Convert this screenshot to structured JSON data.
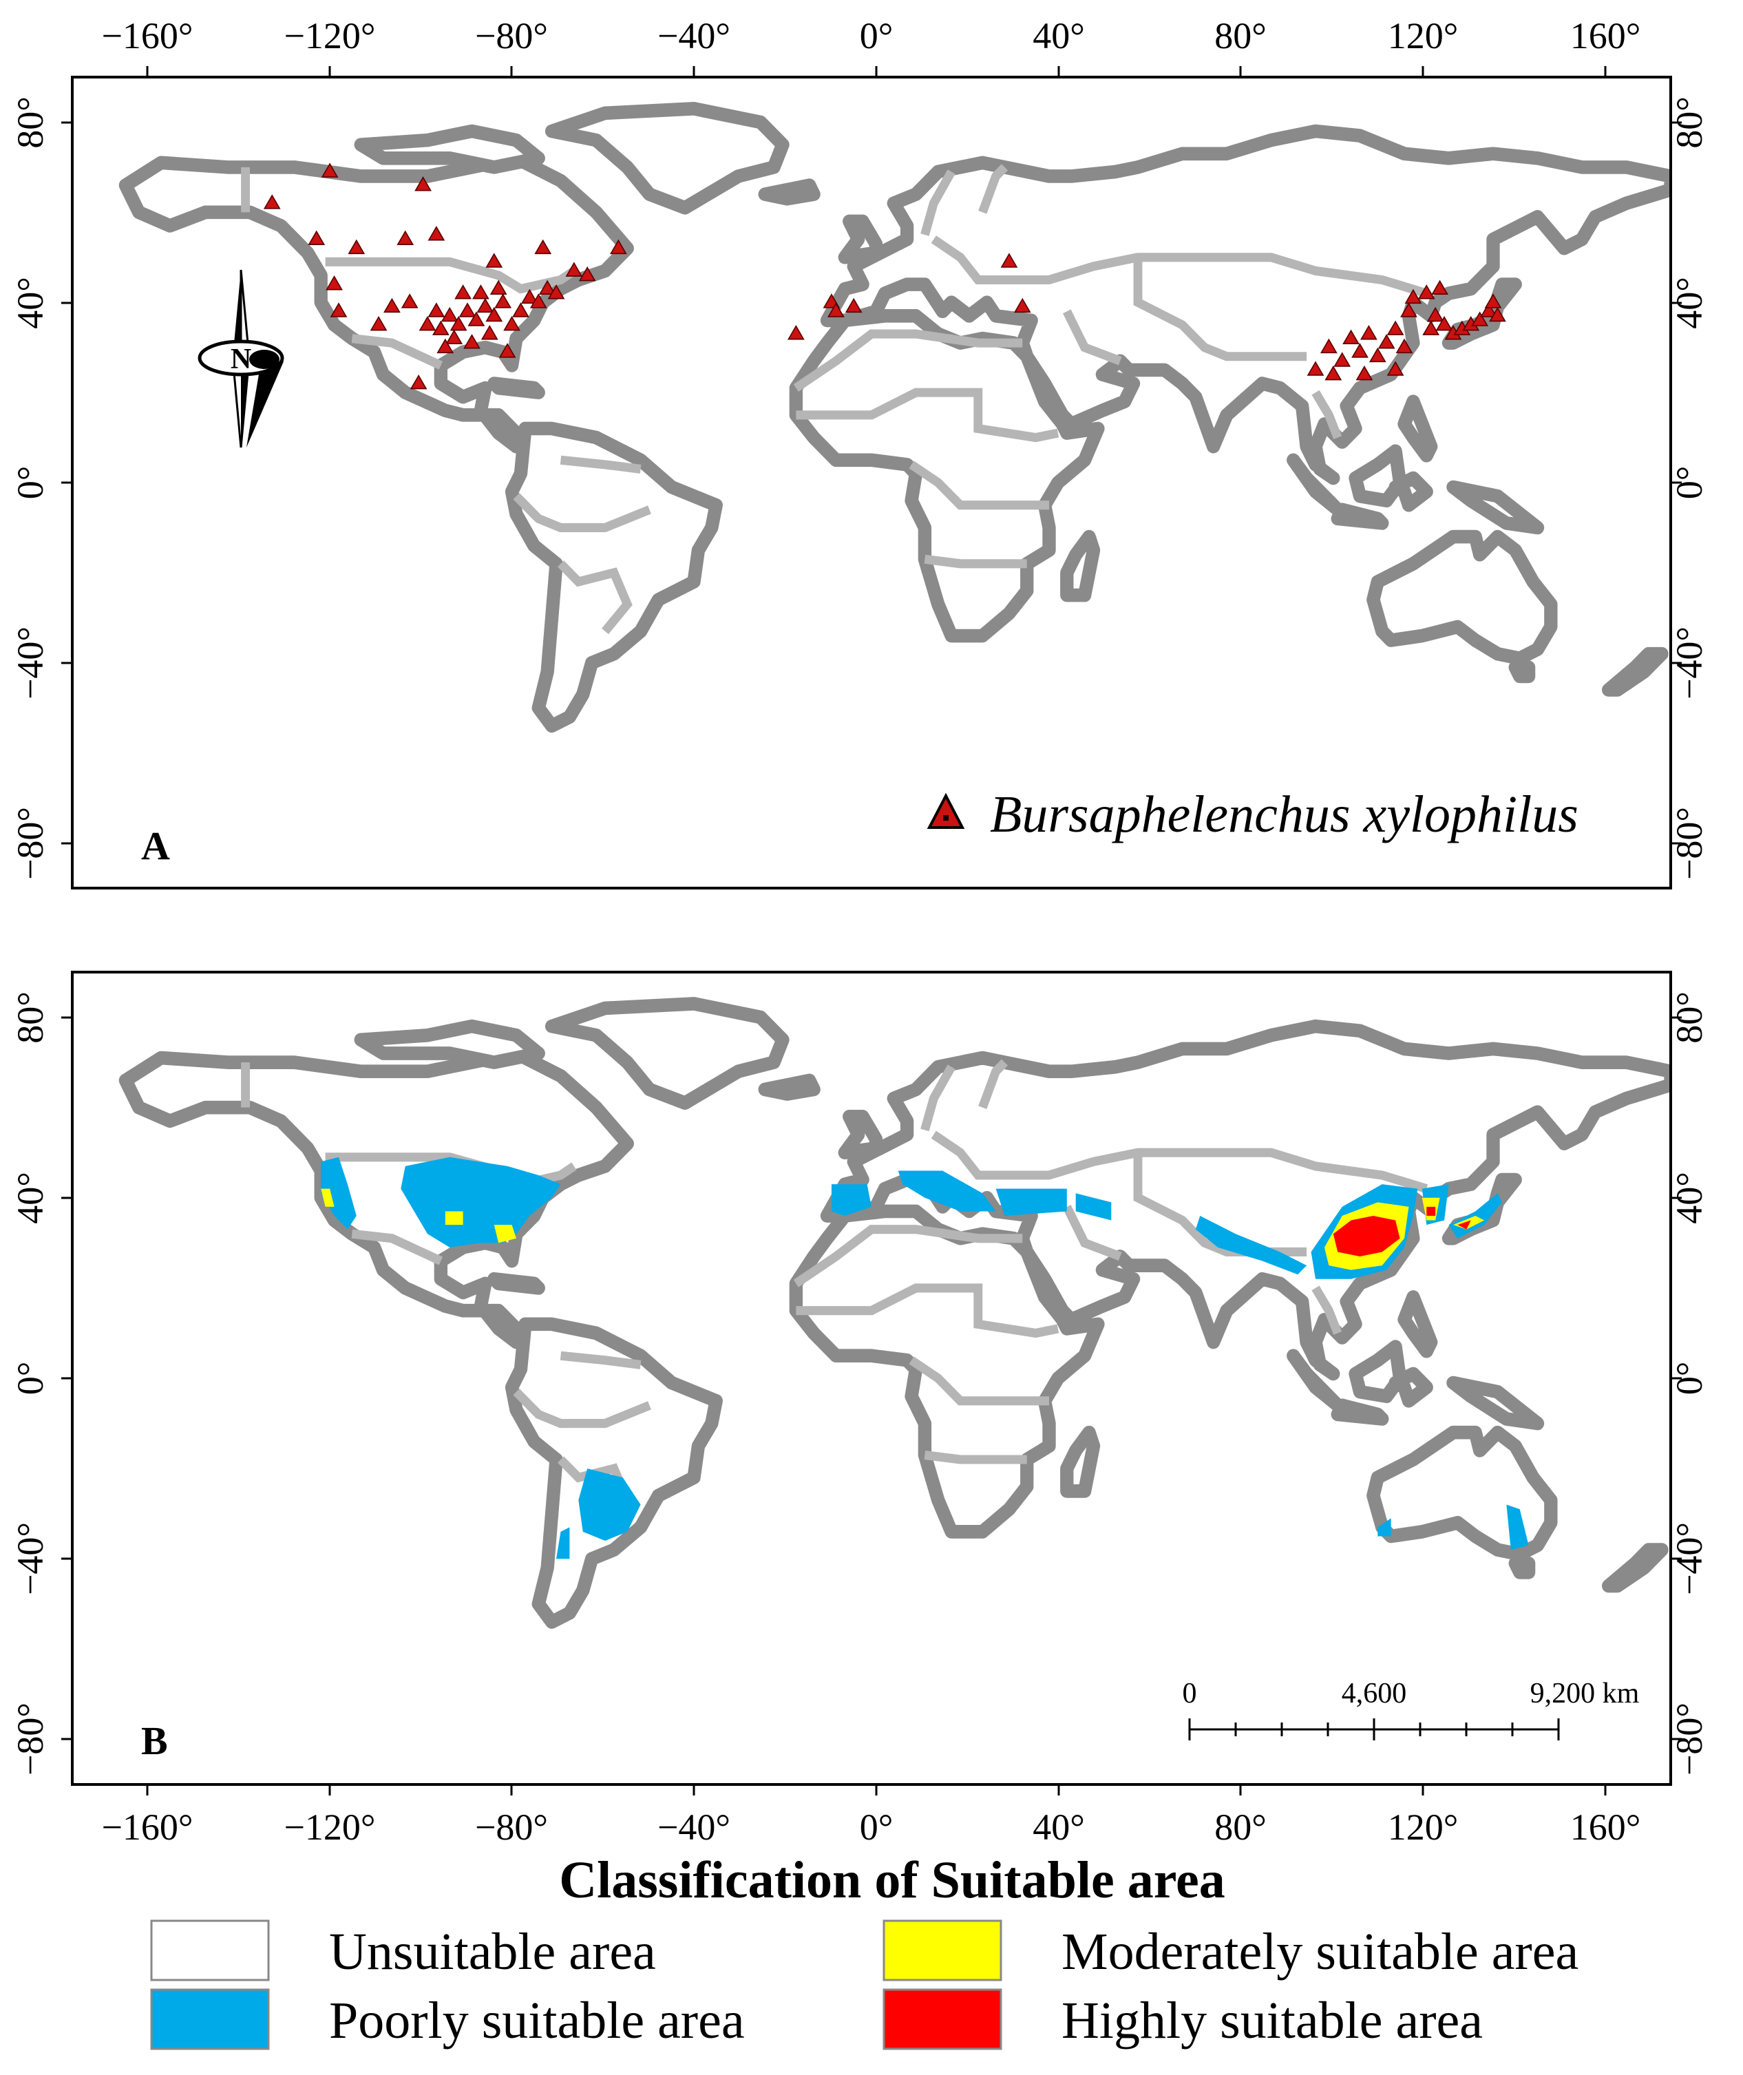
{
  "map": {
    "lon_tick_labels": [
      "−160°",
      "−120°",
      "−80°",
      "−40°",
      "0°",
      "40°",
      "80°",
      "120°",
      "160°"
    ],
    "lat_tick_labels": [
      "80°",
      "40°",
      "0°",
      "−40°",
      "−80°"
    ],
    "panel_a": {
      "letter": "A",
      "legend_label": "Bursaphelenchus xylophilus",
      "north_arrow_letter": "N"
    },
    "panel_b": {
      "letter": "B",
      "scale_bar": {
        "labels": [
          "0",
          "4,600",
          "9,200 km"
        ]
      }
    }
  },
  "legend": {
    "title": "Classification of Suitable area",
    "items": [
      {
        "label": "Unsuitable area",
        "color": "#ffffff"
      },
      {
        "label": "Poorly suitable area",
        "color": "#00a9e8"
      },
      {
        "label": "Moderately suitable area",
        "color": "#ffff00"
      },
      {
        "label": "Highly suitable area",
        "color": "#ff0000"
      }
    ]
  },
  "colors": {
    "occurrence_marker": "#cc1111",
    "land_outline": "#8a8a8a"
  },
  "chart_data": {
    "type": "map",
    "projection": "equirectangular",
    "xlim": [
      -180,
      180
    ],
    "ylim": [
      -90,
      90
    ],
    "occurrence_points": [
      {
        "lon": -135,
        "lat": 62
      },
      {
        "lon": -122,
        "lat": 69
      },
      {
        "lon": -101,
        "lat": 66
      },
      {
        "lon": -125,
        "lat": 54
      },
      {
        "lon": -116,
        "lat": 52
      },
      {
        "lon": -105,
        "lat": 54
      },
      {
        "lon": -98,
        "lat": 55
      },
      {
        "lon": -85,
        "lat": 49
      },
      {
        "lon": -74,
        "lat": 52
      },
      {
        "lon": -57,
        "lat": 52
      },
      {
        "lon": -64,
        "lat": 46
      },
      {
        "lon": -67,
        "lat": 47
      },
      {
        "lon": -121,
        "lat": 44
      },
      {
        "lon": -120,
        "lat": 38
      },
      {
        "lon": -111,
        "lat": 35
      },
      {
        "lon": -108,
        "lat": 39
      },
      {
        "lon": -104,
        "lat": 40
      },
      {
        "lon": -102,
        "lat": 22
      },
      {
        "lon": -97,
        "lat": 34
      },
      {
        "lon": -95,
        "lat": 37
      },
      {
        "lon": -93,
        "lat": 35
      },
      {
        "lon": -91,
        "lat": 38
      },
      {
        "lon": -89,
        "lat": 36
      },
      {
        "lon": -87,
        "lat": 39
      },
      {
        "lon": -85,
        "lat": 37
      },
      {
        "lon": -83,
        "lat": 40
      },
      {
        "lon": -81,
        "lat": 35
      },
      {
        "lon": -79,
        "lat": 38
      },
      {
        "lon": -77,
        "lat": 41
      },
      {
        "lon": -75,
        "lat": 40
      },
      {
        "lon": -73,
        "lat": 43
      },
      {
        "lon": -71,
        "lat": 42
      },
      {
        "lon": -90,
        "lat": 31
      },
      {
        "lon": -86,
        "lat": 33
      },
      {
        "lon": -82,
        "lat": 29
      },
      {
        "lon": -94,
        "lat": 32
      },
      {
        "lon": -96,
        "lat": 30
      },
      {
        "lon": -84,
        "lat": 43
      },
      {
        "lon": -88,
        "lat": 42
      },
      {
        "lon": -92,
        "lat": 42
      },
      {
        "lon": -98,
        "lat": 38
      },
      {
        "lon": -100,
        "lat": 35
      },
      {
        "lon": -9,
        "lat": 40
      },
      {
        "lon": -8,
        "lat": 38
      },
      {
        "lon": -4,
        "lat": 39
      },
      {
        "lon": -17,
        "lat": 33
      },
      {
        "lon": 31,
        "lat": 49
      },
      {
        "lon": 34,
        "lat": 39
      },
      {
        "lon": 100,
        "lat": 25
      },
      {
        "lon": 103,
        "lat": 30
      },
      {
        "lon": 106,
        "lat": 27
      },
      {
        "lon": 108,
        "lat": 32
      },
      {
        "lon": 110,
        "lat": 29
      },
      {
        "lon": 112,
        "lat": 33
      },
      {
        "lon": 114,
        "lat": 28
      },
      {
        "lon": 116,
        "lat": 31
      },
      {
        "lon": 118,
        "lat": 34
      },
      {
        "lon": 120,
        "lat": 30
      },
      {
        "lon": 118,
        "lat": 25
      },
      {
        "lon": 121,
        "lat": 38
      },
      {
        "lon": 122,
        "lat": 41
      },
      {
        "lon": 125,
        "lat": 42
      },
      {
        "lon": 127,
        "lat": 37
      },
      {
        "lon": 129,
        "lat": 35
      },
      {
        "lon": 126,
        "lat": 34
      },
      {
        "lon": 131,
        "lat": 33
      },
      {
        "lon": 133,
        "lat": 34
      },
      {
        "lon": 135,
        "lat": 35
      },
      {
        "lon": 137,
        "lat": 36
      },
      {
        "lon": 139,
        "lat": 38
      },
      {
        "lon": 140,
        "lat": 40
      },
      {
        "lon": 141,
        "lat": 37
      },
      {
        "lon": 128,
        "lat": 43
      },
      {
        "lon": 111,
        "lat": 24
      },
      {
        "lon": 104,
        "lat": 24
      }
    ],
    "suitability_regions": [
      {
        "class": "Poorly suitable area",
        "polygons": [
          [
            [
              -105,
              47
            ],
            [
              -95,
              49
            ],
            [
              -82,
              47
            ],
            [
              -75,
              45
            ],
            [
              -70,
              43
            ],
            [
              -72,
              40
            ],
            [
              -77,
              36
            ],
            [
              -80,
              32
            ],
            [
              -83,
              30
            ],
            [
              -88,
              30
            ],
            [
              -95,
              29
            ],
            [
              -100,
              32
            ],
            [
              -103,
              37
            ],
            [
              -106,
              42
            ]
          ],
          [
            [
              -124,
              48
            ],
            [
              -120,
              49
            ],
            [
              -118,
              43
            ],
            [
              -116,
              36
            ],
            [
              -118,
              33
            ],
            [
              -121,
              36
            ],
            [
              -124,
              41
            ]
          ],
          [
            [
              -64,
              -20
            ],
            [
              -56,
              -22
            ],
            [
              -52,
              -28
            ],
            [
              -55,
              -34
            ],
            [
              -60,
              -36
            ],
            [
              -65,
              -34
            ],
            [
              -66,
              -27
            ]
          ],
          [
            [
              -70,
              -34
            ],
            [
              -68,
              -33
            ],
            [
              -68,
              -40
            ],
            [
              -71,
              -40
            ]
          ],
          [
            [
              -9,
              43
            ],
            [
              -1,
              43
            ],
            [
              0,
              38
            ],
            [
              -6,
              36
            ],
            [
              -9,
              37
            ]
          ],
          [
            [
              6,
              46
            ],
            [
              16,
              46
            ],
            [
              25,
              41
            ],
            [
              28,
              37
            ],
            [
              20,
              37
            ],
            [
              12,
              40
            ],
            [
              7,
              43
            ]
          ],
          [
            [
              28,
              42
            ],
            [
              44,
              42
            ],
            [
              44,
              37
            ],
            [
              30,
              36
            ]
          ],
          [
            [
              46,
              41
            ],
            [
              54,
              39
            ],
            [
              54,
              35
            ],
            [
              46,
              37
            ]
          ],
          [
            [
              74,
              36
            ],
            [
              82,
              32
            ],
            [
              92,
              28
            ],
            [
              98,
              25
            ],
            [
              96,
              23
            ],
            [
              88,
              26
            ],
            [
              78,
              29
            ],
            [
              73,
              33
            ]
          ],
          [
            [
              99,
              28
            ],
            [
              106,
              38
            ],
            [
              115,
              43
            ],
            [
              123,
              42
            ],
            [
              122,
              36
            ],
            [
              120,
              29
            ],
            [
              116,
              24
            ],
            [
              108,
              22
            ],
            [
              100,
              22
            ]
          ],
          [
            [
              124,
              42
            ],
            [
              130,
              43
            ],
            [
              129,
              35
            ],
            [
              125,
              34
            ]
          ],
          [
            [
              130,
              34
            ],
            [
              136,
              37
            ],
            [
              141,
              41
            ],
            [
              142,
              39
            ],
            [
              138,
              34
            ],
            [
              132,
              31
            ]
          ],
          [
            [
              114,
              -33
            ],
            [
              117,
              -31
            ],
            [
              117,
              -35
            ],
            [
              114,
              -35
            ]
          ],
          [
            [
              143,
              -28
            ],
            [
              146,
              -29
            ],
            [
              148,
              -37
            ],
            [
              144,
              -38
            ]
          ]
        ]
      },
      {
        "class": "Moderately suitable area",
        "polygons": [
          [
            [
              -96,
              37
            ],
            [
              -92,
              37
            ],
            [
              -92,
              34
            ],
            [
              -96,
              34
            ]
          ],
          [
            [
              -85,
              34
            ],
            [
              -81,
              34
            ],
            [
              -80,
              31
            ],
            [
              -84,
              30
            ]
          ],
          [
            [
              -124,
              42
            ],
            [
              -122,
              42
            ],
            [
              -121,
              38
            ],
            [
              -123,
              38
            ]
          ],
          [
            [
              102,
              29
            ],
            [
              106,
              36
            ],
            [
              114,
              39
            ],
            [
              121,
              38
            ],
            [
              120,
              31
            ],
            [
              115,
              25
            ],
            [
              108,
              24
            ],
            [
              103,
              25
            ]
          ],
          [
            [
              124,
              40
            ],
            [
              128,
              40
            ],
            [
              127,
              35
            ],
            [
              125,
              35
            ]
          ],
          [
            [
              131,
              34
            ],
            [
              136,
              36
            ],
            [
              138,
              35
            ],
            [
              134,
              33
            ]
          ]
        ]
      },
      {
        "class": "Highly suitable area",
        "polygons": [
          [
            [
              104,
              32
            ],
            [
              108,
              35
            ],
            [
              113,
              36
            ],
            [
              118,
              35
            ],
            [
              119,
              31
            ],
            [
              115,
              28
            ],
            [
              110,
              27
            ],
            [
              105,
              28
            ]
          ],
          [
            [
              125,
              38
            ],
            [
              127,
              38
            ],
            [
              127,
              36
            ],
            [
              125,
              36
            ]
          ],
          [
            [
              132,
              34
            ],
            [
              135,
              35
            ],
            [
              134,
              33
            ]
          ]
        ]
      }
    ]
  }
}
